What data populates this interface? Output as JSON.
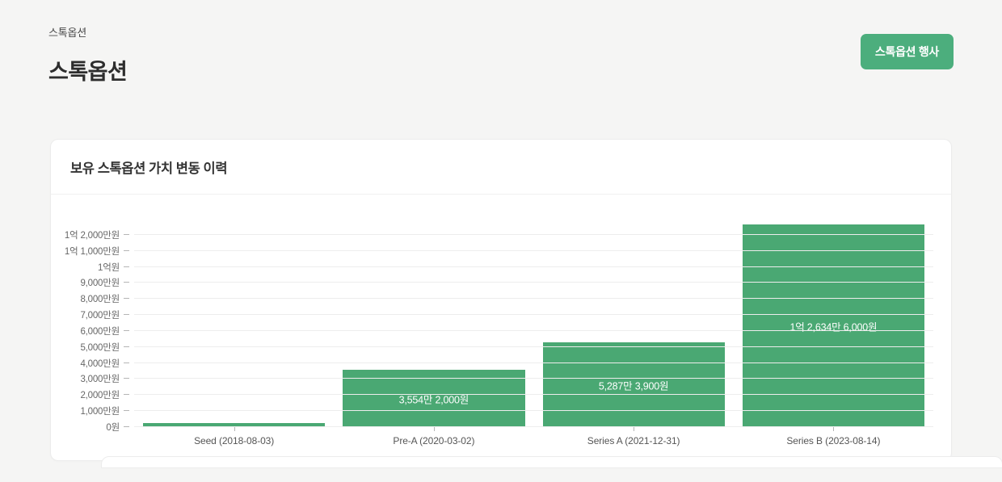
{
  "page": {
    "breadcrumb": "스톡옵션",
    "title": "스톡옵션",
    "action_button_label": "스톡옵션 행사"
  },
  "card": {
    "title": "보유 스톡옵션 가치 변동 이력"
  },
  "colors": {
    "accent_green": "#4aa873",
    "button_green": "#4cae7d",
    "page_background": "#f5f5f4",
    "grid_line": "#ededed",
    "bar_label_text": "#ffffff"
  },
  "chart_data": {
    "type": "bar",
    "title": "보유 스톡옵션 가치 변동 이력",
    "categories": [
      "Seed (2018-08-03)",
      "Pre-A (2020-03-02)",
      "Series A (2021-12-31)",
      "Series B (2023-08-14)"
    ],
    "values": [
      2500000,
      35542000,
      52873900,
      126346000
    ],
    "bar_labels": [
      "",
      "3,554만 2,000원",
      "5,287만 3,900원",
      "1억 2,634만 6,000원"
    ],
    "xlabel": "",
    "ylabel": "",
    "ylim": [
      0,
      130000000
    ],
    "grid": true,
    "legend": false,
    "bar_color": "#4aa873",
    "y_ticks": [
      {
        "value": 0,
        "label": "0원"
      },
      {
        "value": 10000000,
        "label": "1,000만원"
      },
      {
        "value": 20000000,
        "label": "2,000만원"
      },
      {
        "value": 30000000,
        "label": "3,000만원"
      },
      {
        "value": 40000000,
        "label": "4,000만원"
      },
      {
        "value": 50000000,
        "label": "5,000만원"
      },
      {
        "value": 60000000,
        "label": "6,000만원"
      },
      {
        "value": 70000000,
        "label": "7,000만원"
      },
      {
        "value": 80000000,
        "label": "8,000만원"
      },
      {
        "value": 90000000,
        "label": "9,000만원"
      },
      {
        "value": 100000000,
        "label": "1억원"
      },
      {
        "value": 110000000,
        "label": "1억 1,000만원"
      },
      {
        "value": 120000000,
        "label": "1억 2,000만원"
      }
    ]
  }
}
